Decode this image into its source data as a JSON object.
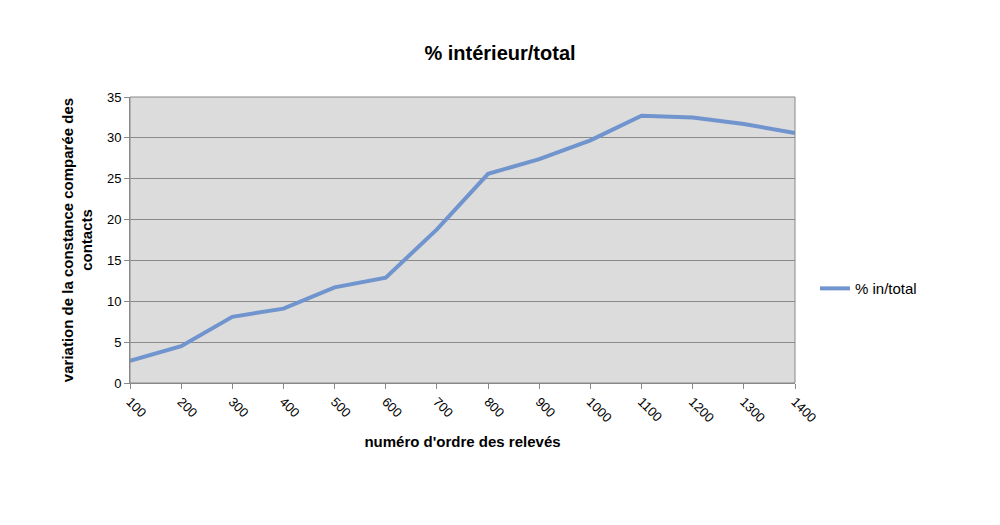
{
  "chart_data": {
    "type": "line",
    "title": "% intérieur/total",
    "x_label": "numéro d'ordre des relevés",
    "y_label": "variation de la constance comparée des contacts",
    "categories": [
      "100",
      "200",
      "300",
      "400",
      "500",
      "600",
      "700",
      "800",
      "900",
      "1000",
      "1100",
      "1200",
      "1300",
      "1400"
    ],
    "series": [
      {
        "name": "% in/total",
        "color": "#7094cd",
        "values": [
          2.7,
          4.5,
          8.1,
          9.1,
          11.7,
          12.9,
          18.8,
          25.6,
          27.4,
          29.7,
          32.7,
          32.5,
          31.7,
          30.6
        ]
      }
    ],
    "ylim": [
      0,
      35
    ],
    "yticks": [
      0,
      5,
      10,
      15,
      20,
      25,
      30,
      35
    ],
    "grid": true,
    "legend": "right"
  }
}
